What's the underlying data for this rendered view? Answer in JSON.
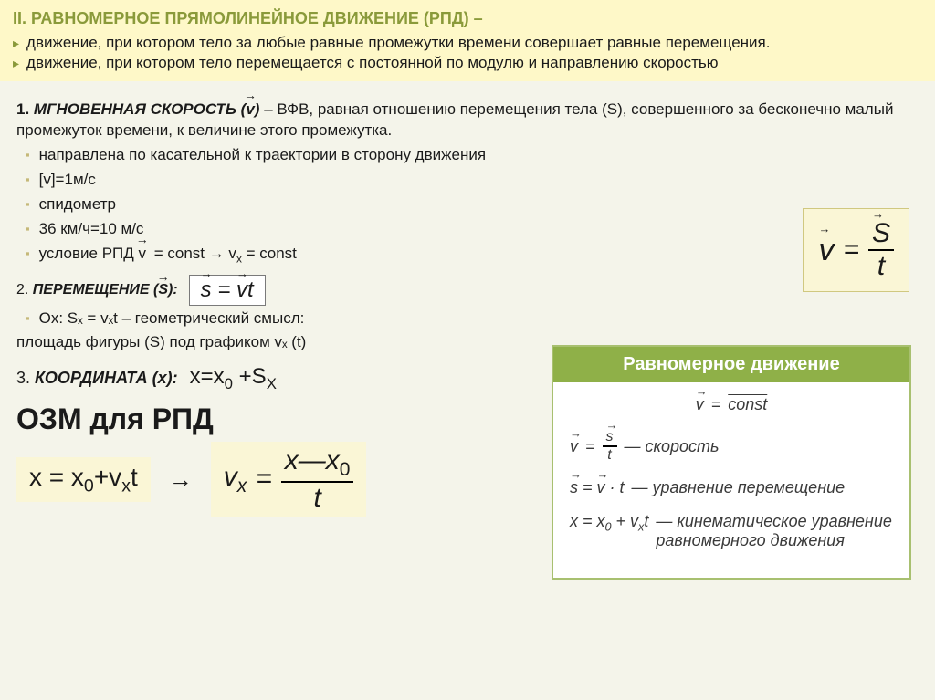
{
  "header": {
    "title": "II. РАВНОМЕРНОЕ ПРЯМОЛИНЕЙНОЕ ДВИЖЕНИЕ (РПД) –",
    "def1": "движение, при котором тело за любые равные промежутки  времени совершает равные перемещения.",
    "def2": "движение, при котором тело перемещается с постоянной по модулю и  направлению скоростью"
  },
  "sec1": {
    "prefix": "1.",
    "title": "МГНОВЕННАЯ СКОРОСТЬ (v)",
    "dash": "–  ВФВ, равная отношению перемещения тела (S), совершенного за бесконечно малый промежуток времени, к величине этого промежутка.",
    "b1": " направлена  по касательной  к траектории в сторону движения",
    "b2": "[v]=1м/с",
    "b3": "спидометр",
    "b4": "36 км/ч=10 м/с",
    "b5_pre": "условие РПД  ",
    "b5_formula": "v = const →  vₓ = const"
  },
  "formula_v": {
    "v": "v",
    "eq": "=",
    "S": "S",
    "t": "t"
  },
  "sec2": {
    "prefix": "2.",
    "title": "ПЕРЕМЕЩЕНИЕ (S):",
    "formula": "s⃗ = v⃗t",
    "ox": " Ox:  Sₓ = vₓt – геометрический смысл:",
    "area": "площадь фигуры (S)   под графиком vₓ (t)"
  },
  "sec3": {
    "prefix": "3.",
    "title": "КООРДИНАТА (x):",
    "formula": "x=x₀ +Sₓ"
  },
  "ozm": {
    "title": "ОЗМ для РПД",
    "eq1": "x = x₀+vₓt",
    "vx": "vₓ",
    "eq": "=",
    "num": "x—x₀",
    "den": "t"
  },
  "panel": {
    "title": "Равномерное движение",
    "r1": "v⃗ = const",
    "r2_lhs": "v⃗ =",
    "r2_num": "s⃗",
    "r2_den": "t",
    "r2_lbl": "— скорость",
    "r3": "s⃗ = v⃗ · t",
    "r3_lbl": "— уравнение перемещение",
    "r4": "x = x₀ + vₓt",
    "r4_lbl": "— кинематическое уравнение равномерного движения"
  },
  "colors": {
    "olive": "#8a9a3a",
    "yellow_box": "#faf6d6",
    "header_bg": "#fef8c8",
    "panel_green": "#8fb048"
  }
}
